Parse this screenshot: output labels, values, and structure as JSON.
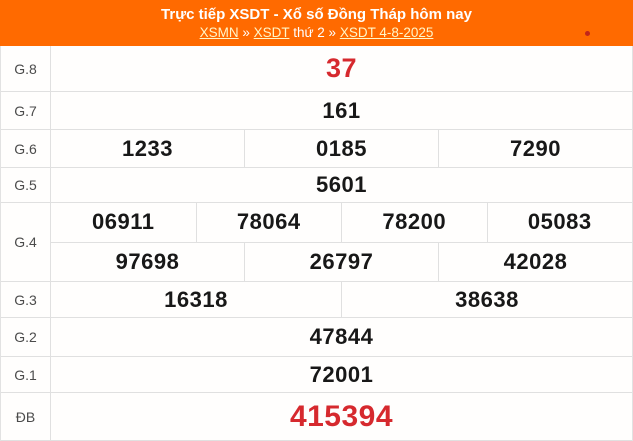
{
  "header": {
    "title": "Trực tiếp XSDT - Xổ số Đồng Tháp hôm nay",
    "breadcrumb": [
      {
        "label": "XSMN",
        "link": true
      },
      {
        "label": "»",
        "link": false
      },
      {
        "label": "XSDT",
        "link": true
      },
      {
        "label": "thứ 2",
        "link": false
      },
      {
        "label": "»",
        "link": false
      },
      {
        "label": "XSDT 4-8-2025",
        "link": true
      }
    ],
    "live_indicator": "live-dot"
  },
  "results": {
    "rows": [
      {
        "key": "g8",
        "label": "G.8",
        "lines": [
          [
            "37"
          ]
        ],
        "highlight": true,
        "size": "lg"
      },
      {
        "key": "g7",
        "label": "G.7",
        "lines": [
          [
            "161"
          ]
        ],
        "highlight": false,
        "size": "md"
      },
      {
        "key": "g6",
        "label": "G.6",
        "lines": [
          [
            "1233",
            "0185",
            "7290"
          ]
        ],
        "highlight": false,
        "size": "md"
      },
      {
        "key": "g5",
        "label": "G.5",
        "lines": [
          [
            "5601"
          ]
        ],
        "highlight": false,
        "size": "md"
      },
      {
        "key": "g4",
        "label": "G.4",
        "lines": [
          [
            "06911",
            "78064",
            "78200",
            "05083"
          ],
          [
            "97698",
            "26797",
            "42028"
          ]
        ],
        "highlight": false,
        "size": "md"
      },
      {
        "key": "g3",
        "label": "G.3",
        "lines": [
          [
            "16318",
            "38638"
          ]
        ],
        "highlight": false,
        "size": "md"
      },
      {
        "key": "g2",
        "label": "G.2",
        "lines": [
          [
            "47844"
          ]
        ],
        "highlight": false,
        "size": "md"
      },
      {
        "key": "g1",
        "label": "G.1",
        "lines": [
          [
            "72001"
          ]
        ],
        "highlight": false,
        "size": "md"
      },
      {
        "key": "db",
        "label": "ĐB",
        "lines": [
          [
            "415394"
          ]
        ],
        "highlight": true,
        "size": "xl"
      }
    ]
  },
  "colors": {
    "header_background": "#ff6a00",
    "header_text": "#ffffff",
    "breadcrumb_link": "#fff6c8",
    "highlight_number": "#d6292e",
    "normal_number": "#181818",
    "table_border": "#e0e0e0",
    "live_dot": "#c1261a"
  }
}
